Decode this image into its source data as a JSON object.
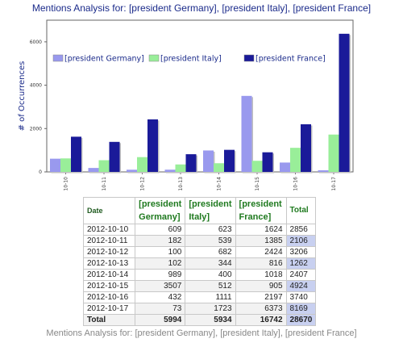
{
  "chart_data": {
    "type": "bar",
    "title": "Mentions Analysis for: [president Germany], [president Italy], [president France]",
    "ylabel": "# of Occurrences",
    "ylim": [
      0,
      7000
    ],
    "yticks": [
      0,
      2000,
      4000,
      6000
    ],
    "categories": [
      "10-10",
      "10-11",
      "10-12",
      "10-13",
      "10-14",
      "10-15",
      "10-16",
      "10-17"
    ],
    "series": [
      {
        "name": "[president Germany]",
        "color": "#9999ee",
        "values": [
          609,
          182,
          100,
          102,
          989,
          3507,
          432,
          73
        ]
      },
      {
        "name": "[president Italy]",
        "color": "#99ee99",
        "values": [
          623,
          539,
          682,
          344,
          400,
          512,
          1111,
          1723
        ]
      },
      {
        "name": "[president France]",
        "color": "#1a1a99",
        "values": [
          1624,
          1385,
          2424,
          816,
          1018,
          905,
          2197,
          6373
        ]
      }
    ],
    "legend_placement": "top"
  },
  "table": {
    "headers": {
      "date": "Date",
      "germany": "[president Germany]",
      "italy": "[president Italy]",
      "france": "[president France]",
      "total": "Total"
    },
    "rows": [
      {
        "date": "2012-10-10",
        "germany": "609",
        "italy": "623",
        "france": "1624",
        "total": "2856"
      },
      {
        "date": "2012-10-11",
        "germany": "182",
        "italy": "539",
        "france": "1385",
        "total": "2106"
      },
      {
        "date": "2012-10-12",
        "germany": "100",
        "italy": "682",
        "france": "2424",
        "total": "3206"
      },
      {
        "date": "2012-10-13",
        "germany": "102",
        "italy": "344",
        "france": "816",
        "total": "1262"
      },
      {
        "date": "2012-10-14",
        "germany": "989",
        "italy": "400",
        "france": "1018",
        "total": "2407"
      },
      {
        "date": "2012-10-15",
        "germany": "3507",
        "italy": "512",
        "france": "905",
        "total": "4924"
      },
      {
        "date": "2012-10-16",
        "germany": "432",
        "italy": "1111",
        "france": "2197",
        "total": "3740"
      },
      {
        "date": "2012-10-17",
        "germany": "73",
        "italy": "1723",
        "france": "6373",
        "total": "8169"
      }
    ],
    "totals": {
      "label": "Total",
      "germany": "5994",
      "italy": "5934",
      "france": "16742",
      "total": "28670"
    }
  },
  "caption": "Mentions Analysis for: [president Germany], [president Italy], [president France]"
}
